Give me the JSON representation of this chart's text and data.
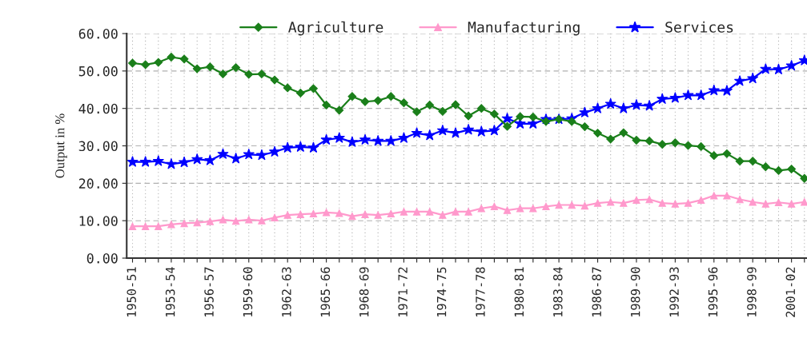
{
  "chart_data": {
    "type": "line",
    "ylabel": "Output in %",
    "categories": [
      "1950-51",
      null,
      null,
      "1953-54",
      null,
      null,
      "1956-57",
      null,
      null,
      "1959-60",
      null,
      null,
      "1962-63",
      null,
      null,
      "1965-66",
      null,
      null,
      "1968-69",
      null,
      null,
      "1971-72",
      null,
      null,
      "1974-75",
      null,
      null,
      "1977-78",
      null,
      null,
      "1980-81",
      null,
      null,
      "1983-84",
      null,
      null,
      "1986-87",
      null,
      null,
      "1989-90",
      null,
      null,
      "1992-93",
      null,
      null,
      "1995-96",
      null,
      null,
      "1998-99",
      null,
      null,
      "2001-02",
      null
    ],
    "series": [
      {
        "name": "Agriculture",
        "color": "#1a7f1a",
        "marker": "diamond",
        "values": [
          52.1,
          51.7,
          52.3,
          53.7,
          53.2,
          50.6,
          51.1,
          49.2,
          50.9,
          49.1,
          49.2,
          47.6,
          45.5,
          44.1,
          45.3,
          40.9,
          39.5,
          43.2,
          41.8,
          42.1,
          43.2,
          41.5,
          39.1,
          40.9,
          39.2,
          41.0,
          38.0,
          40.0,
          38.5,
          35.2,
          37.8,
          37.7,
          36.5,
          37.1,
          36.5,
          35.1,
          33.4,
          31.8,
          33.5,
          31.5,
          31.3,
          30.4,
          30.8,
          30.1,
          29.8,
          27.4,
          27.9,
          25.9,
          25.9,
          24.4,
          23.4,
          23.8,
          21.3
        ]
      },
      {
        "name": "Manufacturing",
        "color": "#ff99cc",
        "marker": "triangle",
        "values": [
          8.5,
          8.5,
          8.5,
          9.0,
          9.3,
          9.5,
          9.8,
          10.3,
          9.9,
          10.3,
          10.0,
          10.8,
          11.5,
          11.7,
          11.9,
          12.2,
          12.0,
          11.2,
          11.7,
          11.5,
          11.9,
          12.4,
          12.4,
          12.4,
          11.5,
          12.4,
          12.4,
          13.3,
          13.8,
          12.8,
          13.3,
          13.3,
          13.8,
          14.2,
          14.2,
          14.0,
          14.7,
          15.0,
          14.7,
          15.5,
          15.7,
          14.7,
          14.5,
          14.7,
          15.5,
          16.7,
          16.7,
          15.7,
          15.0,
          14.5,
          14.9,
          14.5,
          15.0
        ]
      },
      {
        "name": "Services",
        "color": "#0000ff",
        "marker": "star",
        "values": [
          25.7,
          25.7,
          25.9,
          25.1,
          25.6,
          26.4,
          26.1,
          27.8,
          26.6,
          27.7,
          27.5,
          28.4,
          29.5,
          29.7,
          29.5,
          31.6,
          32.1,
          31.0,
          31.6,
          31.3,
          31.3,
          32.1,
          33.4,
          32.8,
          34.1,
          33.4,
          34.3,
          33.8,
          34.1,
          37.3,
          35.9,
          35.9,
          37.1,
          37.1,
          37.3,
          38.9,
          40.0,
          41.2,
          40.0,
          40.9,
          40.7,
          42.5,
          42.8,
          43.5,
          43.5,
          44.8,
          44.7,
          47.3,
          48.0,
          50.5,
          50.4,
          51.4,
          52.8
        ]
      }
    ],
    "ylim": [
      0,
      60
    ],
    "yticks": [
      {
        "value": 0,
        "label": "0.00"
      },
      {
        "value": 10,
        "label": "10.00"
      },
      {
        "value": 20,
        "label": "20.00"
      },
      {
        "value": 30,
        "label": "30.00"
      },
      {
        "value": 40,
        "label": "40.00"
      },
      {
        "value": 50,
        "label": "50.00"
      },
      {
        "value": 60,
        "label": "60.00"
      }
    ],
    "grid": true,
    "legend": "top"
  }
}
